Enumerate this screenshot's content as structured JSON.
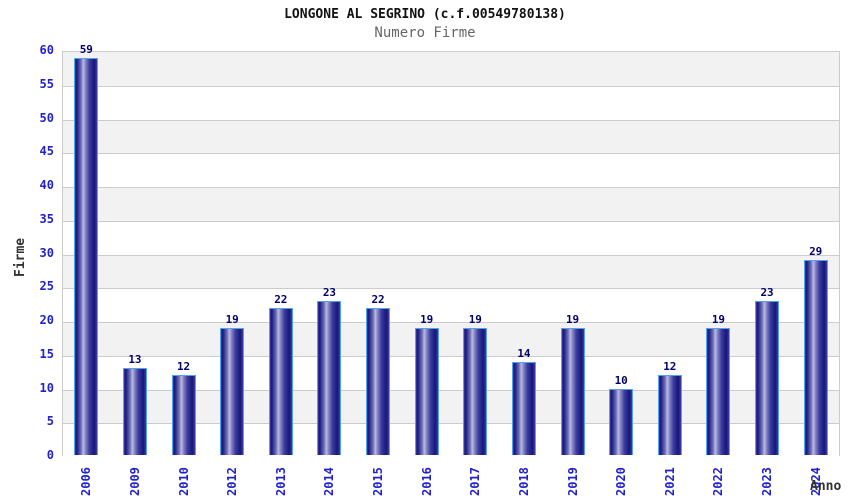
{
  "header": {
    "title": "LONGONE AL SEGRINO (c.f.00549780138)",
    "subtitle": "Numero Firme"
  },
  "chart_data": {
    "type": "bar",
    "title": "LONGONE AL SEGRINO (c.f.00549780138)",
    "subtitle": "Numero Firme",
    "xlabel": "Anno",
    "ylabel": "Firme",
    "categories": [
      "2006",
      "2009",
      "2010",
      "2012",
      "2013",
      "2014",
      "2015",
      "2016",
      "2017",
      "2018",
      "2019",
      "2020",
      "2021",
      "2022",
      "2023",
      "2024"
    ],
    "values": [
      59,
      13,
      12,
      19,
      22,
      23,
      22,
      19,
      19,
      14,
      19,
      10,
      12,
      19,
      23,
      29
    ],
    "ylim": [
      0,
      60
    ],
    "yticks": [
      0,
      5,
      10,
      15,
      20,
      25,
      30,
      35,
      40,
      45,
      50,
      55,
      60
    ],
    "grid": "on",
    "legend": "none",
    "colors": {
      "tick_label": "#2222cc",
      "value_label": "#00006e",
      "bar_border": "#55a2ec",
      "bar_dark": "#16167c",
      "bar_mid": "#3d3da0",
      "bar_highlight": "#bcbce0",
      "gridline": "#cccccc",
      "band_gray": "#f2f2f2",
      "band_white": "#ffffff",
      "title": "#111111",
      "subtitle": "#666666",
      "axis_title": "#333333"
    }
  }
}
